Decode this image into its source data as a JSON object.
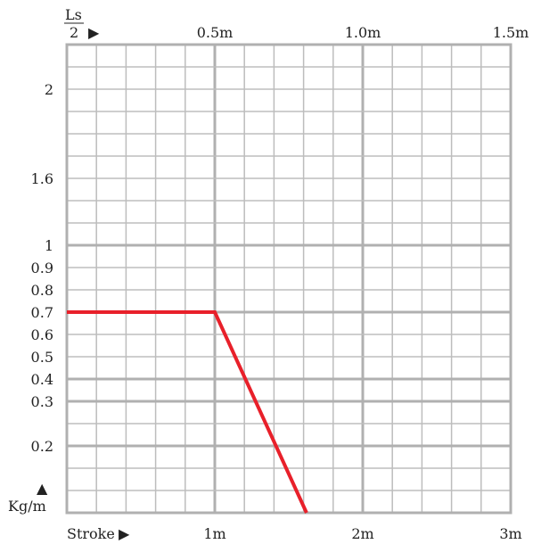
{
  "chart_data": {
    "type": "line",
    "top_axis": {
      "label_numerator": "Ls",
      "label_denominator": "2",
      "label_arrow": "▶",
      "ticks": [
        "0.5m",
        "1.0m",
        "1.5m"
      ]
    },
    "bottom_axis": {
      "label": "Stroke",
      "label_arrow": "▶",
      "ticks": [
        "1m",
        "2m",
        "3m"
      ],
      "range": [
        0,
        3
      ]
    },
    "y_axis": {
      "label": "Kg/m",
      "label_arrow": "▲",
      "scale": "nonlinear",
      "tick_labels": [
        "0.2",
        "0.3",
        "0.4",
        "0.5",
        "0.6",
        "0.7",
        "0.8",
        "0.9",
        "1",
        "1.6",
        "2"
      ]
    },
    "series": [
      {
        "color": "#e8202a",
        "points": [
          {
            "x": 0,
            "y": 0.7
          },
          {
            "x": 1,
            "y": 0.7
          },
          {
            "x": 1.62,
            "y": 0.0
          }
        ]
      }
    ],
    "grid": true
  }
}
